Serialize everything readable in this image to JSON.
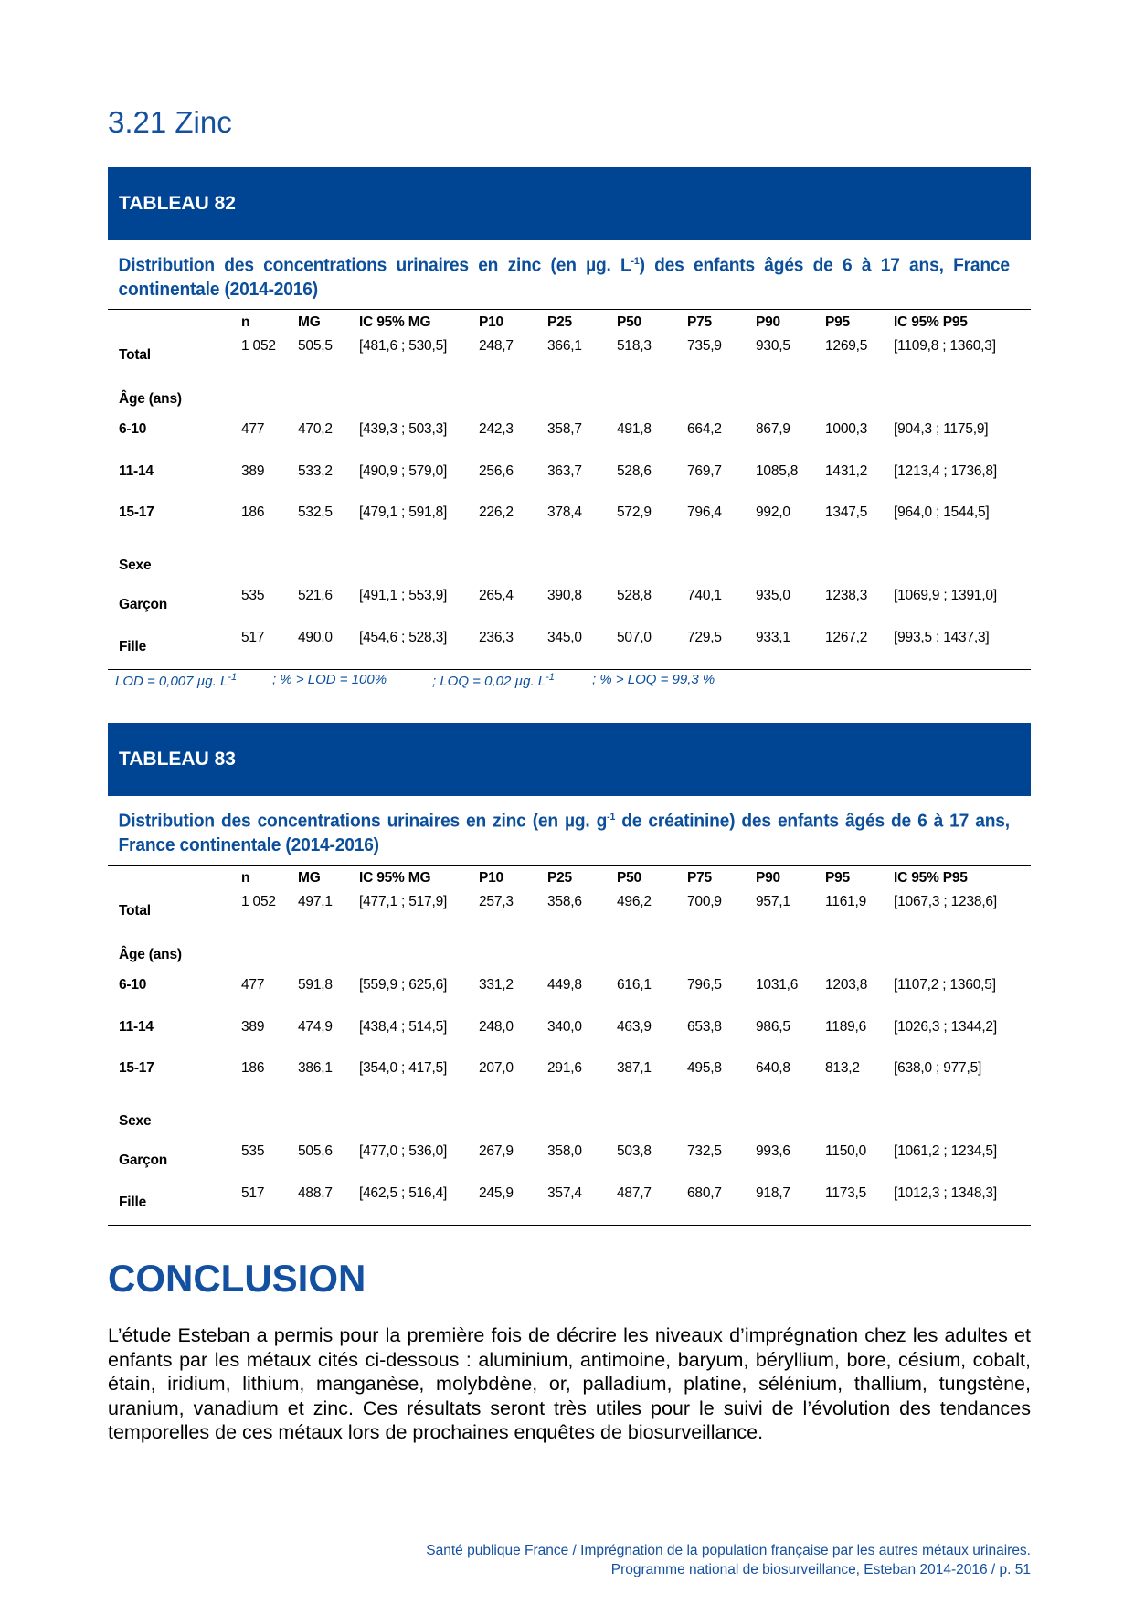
{
  "section_title": "3.21 Zinc",
  "columns": [
    "n",
    "MG",
    "IC 95% MG",
    "P10",
    "P25",
    "P50",
    "P75",
    "P90",
    "P95",
    "IC 95% P95"
  ],
  "tables": [
    {
      "label": "TABLEAU 82",
      "caption": [
        {
          "text": "Distribution des concentrations urinaires en zinc (en µg. L"
        },
        {
          "sup": "-1"
        },
        {
          "text": ") des enfants âgés de 6 à 17 ans, France continentale (2014-2016)"
        }
      ],
      "rows": [
        {
          "label": "Total",
          "cells": [
            "1 052",
            "505,5",
            "[481,6 ; 530,5]",
            "248,7",
            "366,1",
            "518,3",
            "735,9",
            "930,5",
            "1269,5",
            "[1109,8 ; 1360,3]"
          ]
        },
        {
          "section": "Âge  (ans)"
        },
        {
          "label": "6-10",
          "cells": [
            "477",
            "470,2",
            "[439,3 ; 503,3]",
            "242,3",
            "358,7",
            "491,8",
            "664,2",
            "867,9",
            "1000,3",
            "[904,3 ; 1175,9]"
          ]
        },
        {
          "label": "11-14",
          "cells": [
            "389",
            "533,2",
            "[490,9 ; 579,0]",
            "256,6",
            "363,7",
            "528,6",
            "769,7",
            "1085,8",
            "1431,2",
            "[1213,4 ; 1736,8]"
          ]
        },
        {
          "label": "15-17",
          "cells": [
            "186",
            "532,5",
            "[479,1 ; 591,8]",
            "226,2",
            "378,4",
            "572,9",
            "796,4",
            "992,0",
            "1347,5",
            "[964,0 ; 1544,5]"
          ]
        },
        {
          "section": "Sexe"
        },
        {
          "label": "Garçon",
          "cells": [
            "535",
            "521,6",
            "[491,1 ; 553,9]",
            "265,4",
            "390,8",
            "528,8",
            "740,1",
            "935,0",
            "1238,3",
            "[1069,9 ; 1391,0]"
          ]
        },
        {
          "label": "Fille",
          "cells": [
            "517",
            "490,0",
            "[454,6 ; 528,3]",
            "236,3",
            "345,0",
            "507,0",
            "729,5",
            "933,1",
            "1267,2",
            "[993,5 ; 1437,3]"
          ]
        }
      ],
      "notes": [
        [
          {
            "text": "LOD =  0,007 µg. L"
          },
          {
            "sup": "-1"
          }
        ],
        [
          {
            "text": "; % > LOD = 100%"
          }
        ],
        [
          {
            "text": "; LOQ =  0,02 µg. L"
          },
          {
            "sup": "-1"
          }
        ],
        [
          {
            "text": "; % > LOQ = 99,3 %"
          }
        ]
      ]
    },
    {
      "label": "TABLEAU 83",
      "caption": [
        {
          "text": "Distribution des concentrations urinaires en zinc (en µg. g"
        },
        {
          "sup": "-1"
        },
        {
          "text": " de créatinine) des enfants âgés de 6 à 17 ans, France continentale (2014-2016)"
        }
      ],
      "rows": [
        {
          "label": "Total",
          "cells": [
            "1 052",
            "497,1",
            "[477,1 ; 517,9]",
            "257,3",
            "358,6",
            "496,2",
            "700,9",
            "957,1",
            "1161,9",
            "[1067,3 ; 1238,6]"
          ]
        },
        {
          "section": "Âge  (ans)"
        },
        {
          "label": "6-10",
          "cells": [
            "477",
            "591,8",
            "[559,9 ; 625,6]",
            "331,2",
            "449,8",
            "616,1",
            "796,5",
            "1031,6",
            "1203,8",
            "[1107,2 ; 1360,5]"
          ]
        },
        {
          "label": "11-14",
          "cells": [
            "389",
            "474,9",
            "[438,4 ; 514,5]",
            "248,0",
            "340,0",
            "463,9",
            "653,8",
            "986,5",
            "1189,6",
            "[1026,3 ; 1344,2]"
          ]
        },
        {
          "label": "15-17",
          "cells": [
            "186",
            "386,1",
            "[354,0 ; 417,5]",
            "207,0",
            "291,6",
            "387,1",
            "495,8",
            "640,8",
            "813,2",
            "[638,0 ; 977,5]"
          ]
        },
        {
          "section": "Sexe"
        },
        {
          "label": "Garçon",
          "cells": [
            "535",
            "505,6",
            "[477,0 ; 536,0]",
            "267,9",
            "358,0",
            "503,8",
            "732,5",
            "993,6",
            "1150,0",
            "[1061,2 ; 1234,5]"
          ]
        },
        {
          "label": "Fille",
          "cells": [
            "517",
            "488,7",
            "[462,5 ; 516,4]",
            "245,9",
            "357,4",
            "487,7",
            "680,7",
            "918,7",
            "1173,5",
            "[1012,3 ; 1348,3]"
          ]
        }
      ]
    }
  ],
  "conclusion": {
    "heading": "CONCLUSION",
    "text": "L’étude Esteban a permis pour la première fois de décrire les niveaux d’imprégnation chez les adultes et enfants par les métaux cités ci-dessous : aluminium, antimoine, baryum, béryllium, bore, césium, cobalt, étain, iridium, lithium, manganèse, molybdène, or, palladium, platine, sélénium, thallium, tungstène, uranium, vanadium et zinc. Ces résultats seront très utiles pour le suivi de l’évolution des tendances temporelles de ces métaux lors de prochaines enquêtes de biosurveillance."
  },
  "footer": [
    "Santé publique France / Imprégnation de la population française par les autres métaux urinaires.",
    "Programme national de biosurveillance, Esteban 2014-2016 / p. 51"
  ]
}
